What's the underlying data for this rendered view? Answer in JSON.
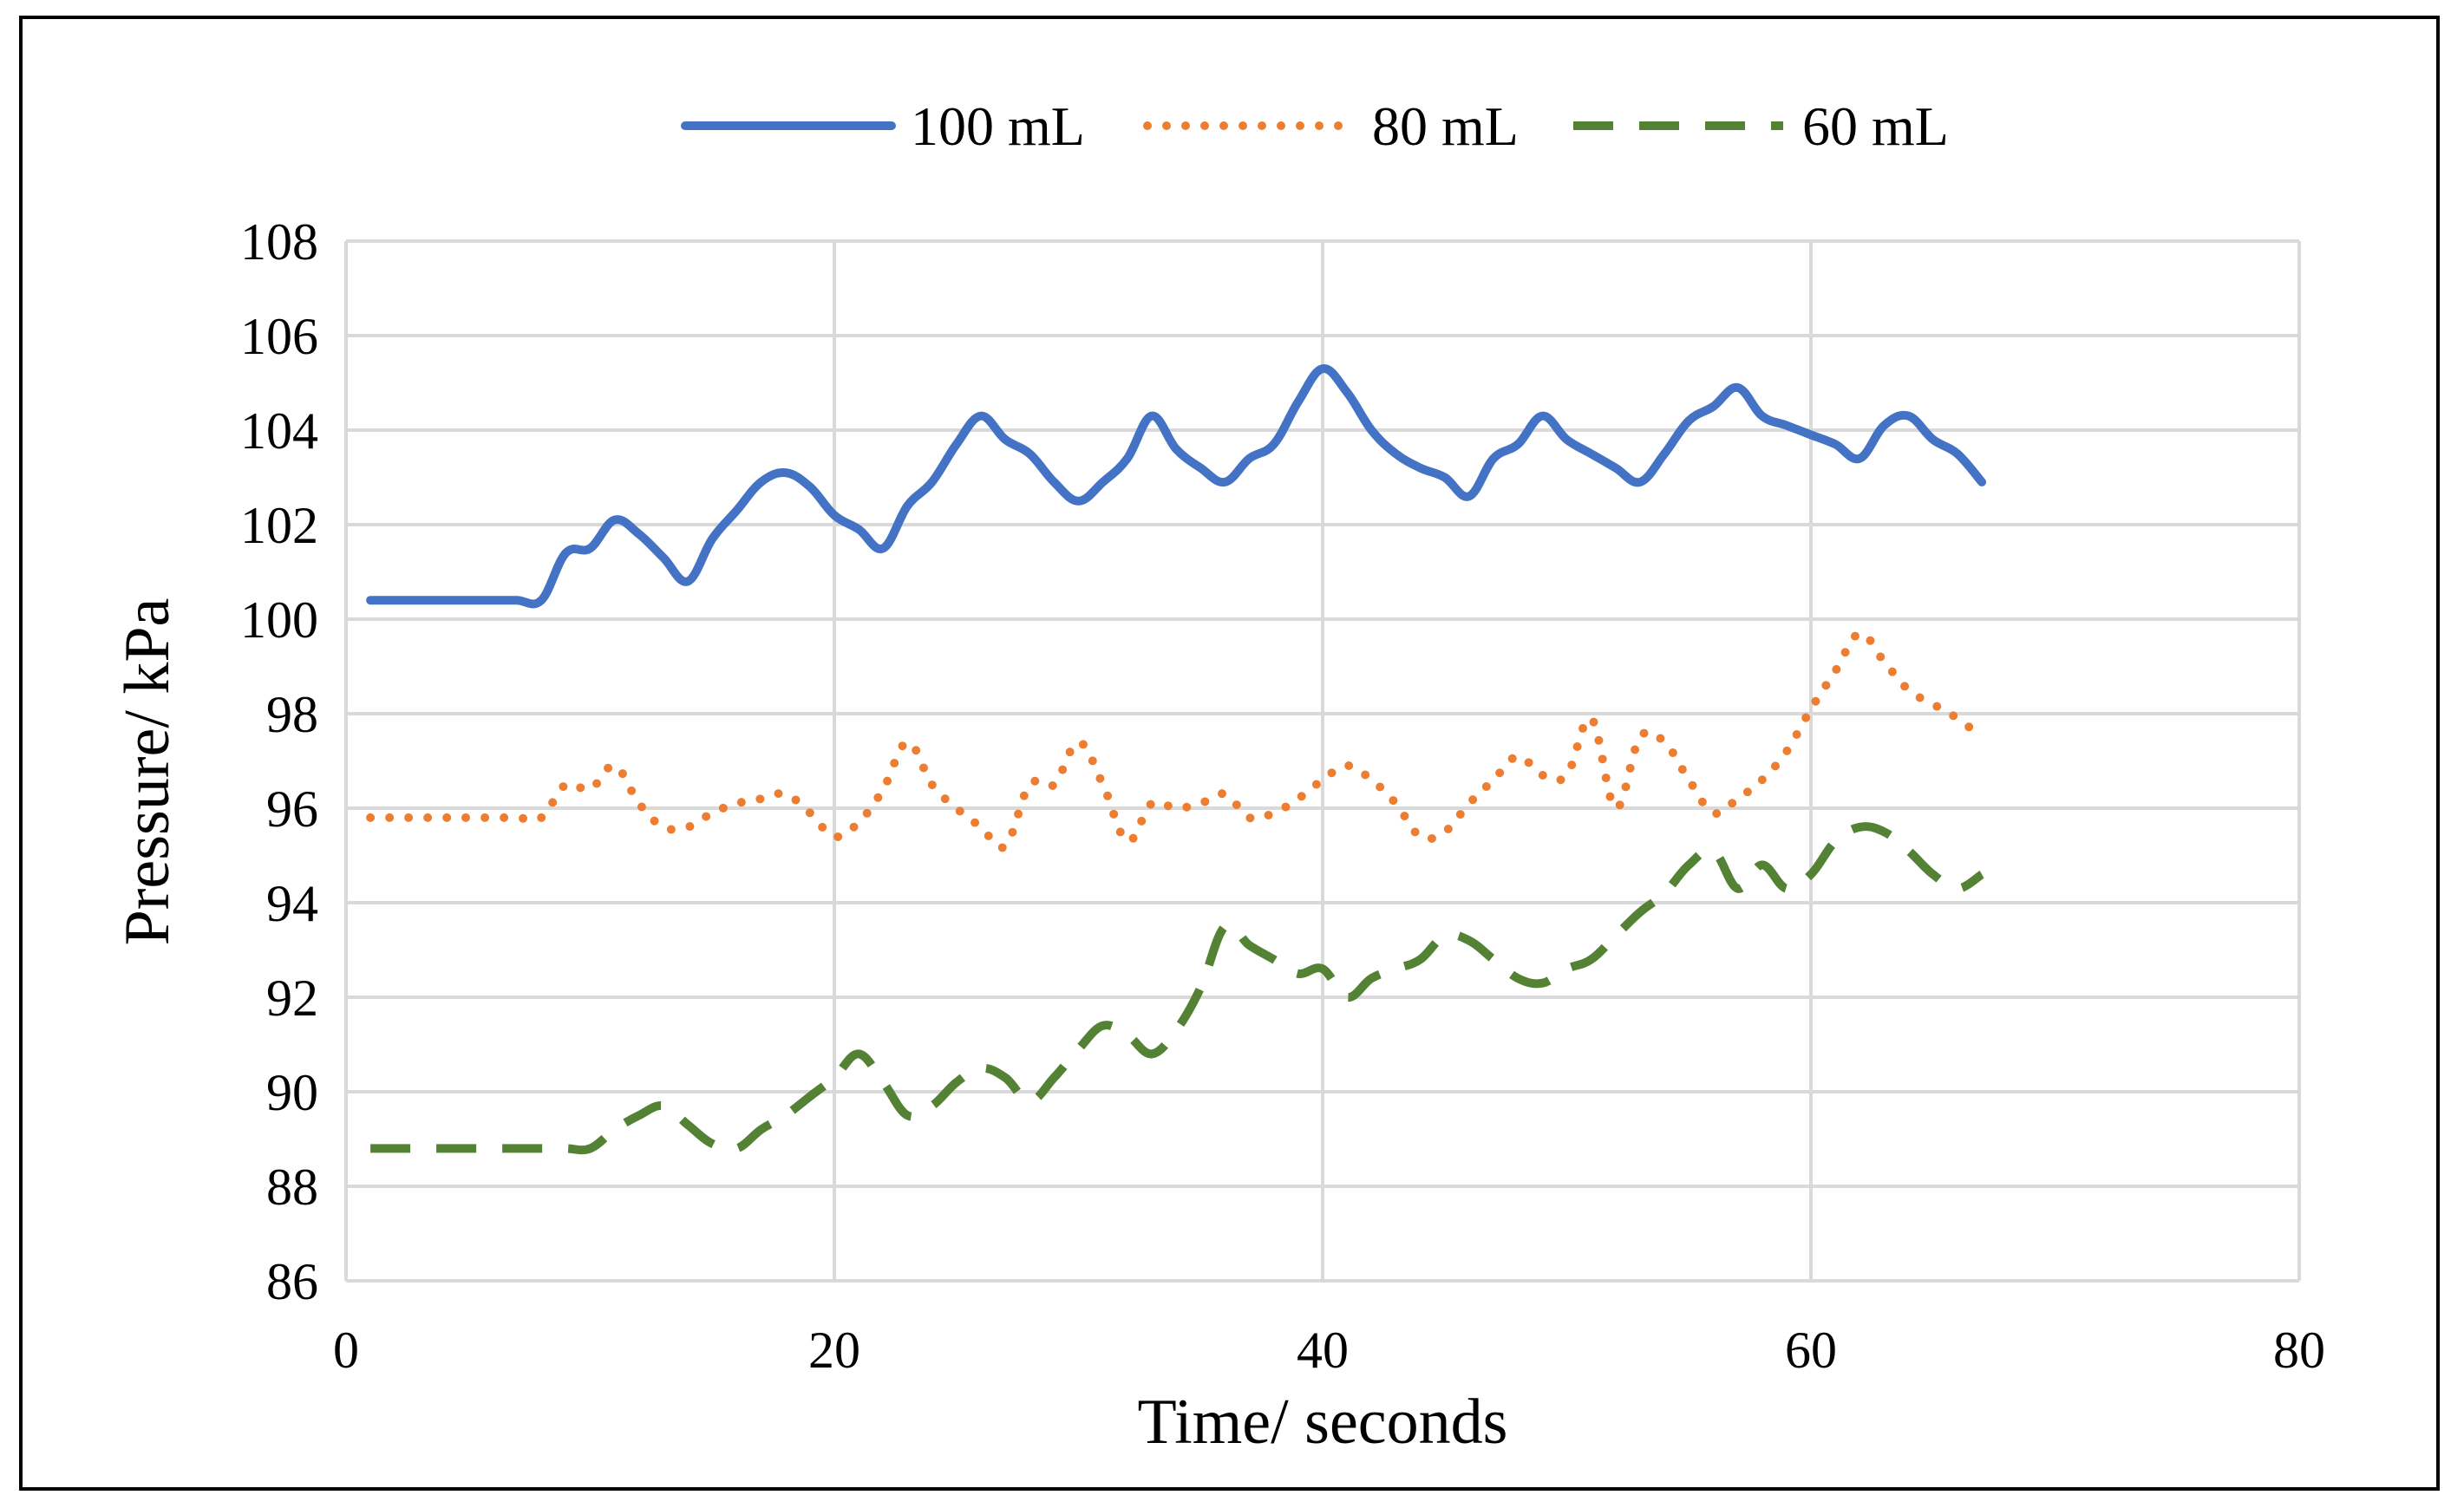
{
  "chart_data": {
    "type": "line",
    "title": "",
    "xlabel": "Time/ seconds",
    "ylabel": "Pressure/ kPa",
    "xlim": [
      0,
      80
    ],
    "ylim": [
      86,
      108
    ],
    "xticks": [
      0,
      20,
      40,
      60,
      80
    ],
    "yticks": [
      86,
      88,
      90,
      92,
      94,
      96,
      98,
      100,
      102,
      104,
      106,
      108
    ],
    "grid": true,
    "legend_position": "top-center",
    "series": [
      {
        "name": "100 mL",
        "color": "#4472C4",
        "style": "solid",
        "x": [
          1,
          2,
          3,
          4,
          5,
          6,
          7,
          8,
          9,
          10,
          11,
          12,
          13,
          14,
          15,
          16,
          17,
          18,
          19,
          20,
          21,
          22,
          23,
          24,
          25,
          26,
          27,
          28,
          29,
          30,
          31,
          32,
          33,
          34,
          35,
          36,
          37,
          38,
          39,
          40,
          41,
          42,
          43,
          44,
          45,
          46,
          47,
          48,
          49,
          50,
          51,
          52,
          53,
          54,
          55,
          56,
          57,
          58,
          59,
          60,
          61,
          62,
          63,
          64,
          65,
          66,
          67
        ],
        "y": [
          100.4,
          100.4,
          100.4,
          100.4,
          100.4,
          100.4,
          100.4,
          100.4,
          101.4,
          101.5,
          102.1,
          101.8,
          101.3,
          100.8,
          101.7,
          102.3,
          102.9,
          103.1,
          102.8,
          102.2,
          101.9,
          101.5,
          102.4,
          102.9,
          103.7,
          104.3,
          103.8,
          103.5,
          102.9,
          102.5,
          102.9,
          103.4,
          104.3,
          103.6,
          103.2,
          102.9,
          103.4,
          103.7,
          104.6,
          105.3,
          104.8,
          104.0,
          103.5,
          103.2,
          103.0,
          102.6,
          103.4,
          103.7,
          104.3,
          103.8,
          103.5,
          103.2,
          102.9,
          103.5,
          104.2,
          104.5,
          104.9,
          104.3,
          104.1,
          103.9,
          103.7,
          103.4,
          104.1,
          104.3,
          103.8,
          103.5,
          102.9
        ]
      },
      {
        "name": "80 mL",
        "color": "#ED7D31",
        "style": "dotted",
        "x": [
          1,
          2,
          3,
          4,
          5,
          6,
          7,
          8,
          9,
          10,
          11,
          12,
          13,
          14,
          15,
          16,
          17,
          18,
          19,
          20,
          21,
          22,
          23,
          24,
          25,
          26,
          27,
          28,
          29,
          30,
          31,
          32,
          33,
          34,
          35,
          36,
          37,
          38,
          39,
          40,
          41,
          42,
          43,
          44,
          45,
          46,
          47,
          48,
          49,
          50,
          51,
          52,
          53,
          54,
          55,
          56,
          57,
          58,
          59,
          60,
          61,
          62,
          63,
          64,
          65,
          66,
          67
        ],
        "y": [
          95.8,
          95.8,
          95.8,
          95.8,
          95.8,
          95.8,
          95.8,
          95.8,
          96.5,
          96.4,
          96.9,
          96.1,
          95.6,
          95.6,
          95.9,
          96.1,
          96.2,
          96.3,
          95.9,
          95.4,
          95.7,
          96.4,
          97.4,
          96.5,
          96.0,
          95.6,
          95.2,
          96.5,
          96.5,
          97.4,
          96.5,
          95.3,
          96.1,
          96.0,
          96.1,
          96.3,
          95.8,
          95.9,
          96.2,
          96.6,
          96.9,
          96.6,
          96.1,
          95.4,
          95.5,
          96.1,
          96.6,
          97.1,
          96.7,
          96.7,
          97.9,
          96.0,
          97.5,
          97.4,
          96.6,
          95.9,
          96.2,
          96.6,
          97.2,
          98.1,
          98.9,
          99.7,
          99.1,
          98.5,
          98.2,
          97.9,
          97.5
        ]
      },
      {
        "name": "60 mL",
        "color": "#548235",
        "style": "dashed",
        "x": [
          1,
          2,
          3,
          4,
          5,
          6,
          7,
          8,
          9,
          10,
          11,
          12,
          13,
          14,
          15,
          16,
          17,
          18,
          19,
          20,
          21,
          22,
          23,
          24,
          25,
          26,
          27,
          28,
          29,
          30,
          31,
          32,
          33,
          34,
          35,
          36,
          37,
          38,
          39,
          40,
          41,
          42,
          43,
          44,
          45,
          46,
          47,
          48,
          49,
          50,
          51,
          52,
          53,
          54,
          55,
          56,
          57,
          58,
          59,
          60,
          61,
          62,
          63,
          64,
          65,
          66,
          67
        ],
        "y": [
          88.8,
          88.8,
          88.8,
          88.8,
          88.8,
          88.8,
          88.8,
          88.8,
          88.8,
          88.8,
          89.2,
          89.5,
          89.7,
          89.3,
          88.9,
          88.8,
          89.2,
          89.5,
          89.9,
          90.3,
          90.8,
          90.2,
          89.5,
          89.7,
          90.2,
          90.5,
          90.3,
          89.8,
          90.3,
          90.9,
          91.4,
          91.2,
          90.8,
          91.3,
          92.2,
          93.5,
          93.1,
          92.8,
          92.5,
          92.6,
          92.0,
          92.4,
          92.6,
          92.8,
          93.3,
          93.2,
          92.8,
          92.4,
          92.3,
          92.6,
          92.8,
          93.3,
          93.8,
          94.2,
          94.8,
          95.1,
          94.3,
          94.8,
          94.3,
          94.6,
          95.3,
          95.6,
          95.5,
          95.1,
          94.6,
          94.3,
          94.6
        ]
      }
    ]
  }
}
